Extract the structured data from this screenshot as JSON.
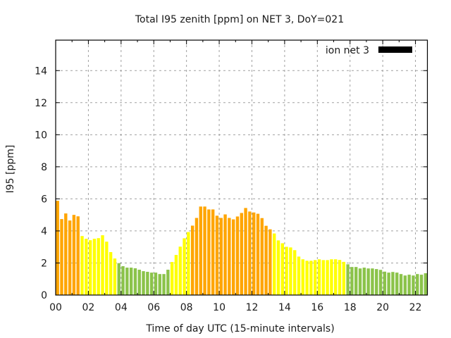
{
  "chart_data": {
    "type": "bar",
    "title": "Total I95 zenith [ppm] on NET 3, DoY=021",
    "xlabel": "Time of day UTC (15-minute intervals)",
    "ylabel": "I95 [ppm]",
    "xlim": [
      0,
      22.73
    ],
    "ylim": [
      0,
      15.9
    ],
    "grid": true,
    "legend": {
      "position": "top-right",
      "entries": [
        {
          "label": "ion net 3",
          "color": "#000000"
        }
      ]
    },
    "x_ticks": [
      {
        "value": 0,
        "label": "00"
      },
      {
        "value": 2,
        "label": "02"
      },
      {
        "value": 4,
        "label": "04"
      },
      {
        "value": 6,
        "label": "06"
      },
      {
        "value": 8,
        "label": "08"
      },
      {
        "value": 10,
        "label": "10"
      },
      {
        "value": 12,
        "label": "12"
      },
      {
        "value": 14,
        "label": "14"
      },
      {
        "value": 16,
        "label": "16"
      },
      {
        "value": 18,
        "label": "18"
      },
      {
        "value": 20,
        "label": "20"
      },
      {
        "value": 22,
        "label": "22"
      }
    ],
    "x_minor_ticks": [
      1,
      3,
      5,
      7,
      9,
      11,
      13,
      15,
      17,
      19,
      21
    ],
    "y_ticks": [
      {
        "value": 0,
        "label": "0"
      },
      {
        "value": 2,
        "label": "2"
      },
      {
        "value": 4,
        "label": "4"
      },
      {
        "value": 6,
        "label": "6"
      },
      {
        "value": 8,
        "label": "8"
      },
      {
        "value": 10,
        "label": "10"
      },
      {
        "value": 12,
        "label": "12"
      },
      {
        "value": 14,
        "label": "14"
      }
    ],
    "bar_interval_hours": 0.25,
    "colors": {
      "orange": "#FFA500",
      "yellow": "#FFFF00",
      "green": "#8BC34A"
    },
    "series": [
      {
        "name": "ion net 3",
        "values": [
          5.88,
          4.74,
          5.09,
          4.65,
          5.0,
          4.91,
          3.68,
          3.51,
          3.42,
          3.51,
          3.55,
          3.73,
          3.33,
          2.68,
          2.28,
          1.99,
          1.8,
          1.71,
          1.71,
          1.67,
          1.58,
          1.49,
          1.45,
          1.4,
          1.4,
          1.31,
          1.31,
          1.58,
          2.06,
          2.5,
          3.02,
          3.54,
          3.93,
          4.33,
          4.81,
          5.52,
          5.52,
          5.34,
          5.34,
          4.95,
          4.81,
          5.03,
          4.81,
          4.72,
          4.9,
          5.12,
          5.43,
          5.21,
          5.15,
          5.07,
          4.8,
          4.32,
          4.1,
          3.84,
          3.41,
          3.23,
          3.01,
          2.97,
          2.8,
          2.4,
          2.23,
          2.14,
          2.14,
          2.18,
          2.23,
          2.18,
          2.18,
          2.23,
          2.23,
          2.19,
          2.07,
          1.92,
          1.75,
          1.75,
          1.66,
          1.71,
          1.66,
          1.66,
          1.62,
          1.57,
          1.46,
          1.4,
          1.44,
          1.4,
          1.31,
          1.22,
          1.27,
          1.22,
          1.31,
          1.27,
          1.36,
          1.44
        ],
        "bar_colors": [
          "orange",
          "orange",
          "orange",
          "orange",
          "orange",
          "orange",
          "yellow",
          "yellow",
          "yellow",
          "yellow",
          "yellow",
          "yellow",
          "yellow",
          "yellow",
          "yellow",
          "green",
          "green",
          "green",
          "green",
          "green",
          "green",
          "green",
          "green",
          "green",
          "green",
          "green",
          "green",
          "green",
          "yellow",
          "yellow",
          "yellow",
          "yellow",
          "yellow",
          "orange",
          "orange",
          "orange",
          "orange",
          "orange",
          "orange",
          "orange",
          "orange",
          "orange",
          "orange",
          "orange",
          "orange",
          "orange",
          "orange",
          "orange",
          "orange",
          "orange",
          "orange",
          "orange",
          "orange",
          "yellow",
          "yellow",
          "yellow",
          "yellow",
          "yellow",
          "yellow",
          "yellow",
          "yellow",
          "yellow",
          "yellow",
          "yellow",
          "yellow",
          "yellow",
          "yellow",
          "yellow",
          "yellow",
          "yellow",
          "yellow",
          "green",
          "green",
          "green",
          "green",
          "green",
          "green",
          "green",
          "green",
          "green",
          "green",
          "green",
          "green",
          "green",
          "green",
          "green",
          "green",
          "green",
          "green",
          "green",
          "green",
          "green"
        ]
      }
    ]
  }
}
